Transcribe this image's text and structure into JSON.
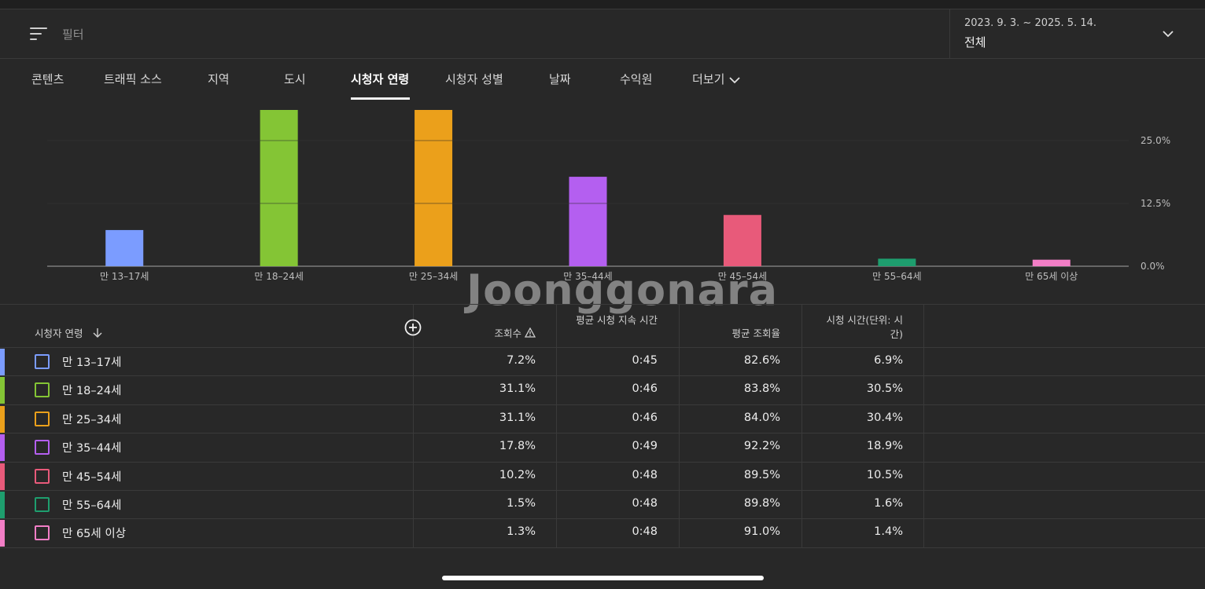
{
  "filter": {
    "label": "필터",
    "icon": "filter-icon"
  },
  "date": {
    "range": "2023. 9. 3. ~ 2025. 5. 14.",
    "value": "전체"
  },
  "tabs": [
    {
      "label": "콘텐츠"
    },
    {
      "label": "트래픽 소스"
    },
    {
      "label": "지역"
    },
    {
      "label": "도시"
    },
    {
      "label": "시청자 연령",
      "active": true
    },
    {
      "label": "시청자 성별"
    },
    {
      "label": "날짜"
    },
    {
      "label": "수익원"
    },
    {
      "label": "더보기"
    }
  ],
  "watermark": "Joonggonara",
  "chart_data": {
    "type": "bar",
    "categories": [
      "만 13–17세",
      "만 18–24세",
      "만 25–34세",
      "만 35–44세",
      "만 45–54세",
      "만 55–64세",
      "만 65세 이상"
    ],
    "values": [
      7.2,
      31.1,
      31.1,
      17.8,
      10.2,
      1.5,
      1.3
    ],
    "colors": [
      "#7b9cff",
      "#84c535",
      "#eba01b",
      "#b45ff0",
      "#e85a7a",
      "#1e9e6e",
      "#f27ec6"
    ],
    "yticks": [
      "0.0%",
      "12.5%",
      "25.0%"
    ],
    "ytick_values": [
      0,
      12.5,
      25
    ],
    "ylim": [
      0,
      25
    ],
    "grid": true
  },
  "table": {
    "headers": {
      "dimension": "시청자 연령",
      "views": "조회수",
      "avg_duration": "평균 시청 지속 시간",
      "avg_percent": "평균 조회율",
      "watch_time": "시청 시간(단위: 시간)"
    },
    "rows": [
      {
        "label": "만 13–17세",
        "views": "7.2%",
        "duration": "0:45",
        "percent": "82.6%",
        "watch": "6.9%",
        "color": "#7b9cff"
      },
      {
        "label": "만 18–24세",
        "views": "31.1%",
        "duration": "0:46",
        "percent": "83.8%",
        "watch": "30.5%",
        "color": "#84c535"
      },
      {
        "label": "만 25–34세",
        "views": "31.1%",
        "duration": "0:46",
        "percent": "84.0%",
        "watch": "30.4%",
        "color": "#eba01b"
      },
      {
        "label": "만 35–44세",
        "views": "17.8%",
        "duration": "0:49",
        "percent": "92.2%",
        "watch": "18.9%",
        "color": "#b45ff0"
      },
      {
        "label": "만 45–54세",
        "views": "10.2%",
        "duration": "0:48",
        "percent": "89.5%",
        "watch": "10.5%",
        "color": "#e85a7a"
      },
      {
        "label": "만 55–64세",
        "views": "1.5%",
        "duration": "0:48",
        "percent": "89.8%",
        "watch": "1.6%",
        "color": "#1e9e6e"
      },
      {
        "label": "만 65세 이상",
        "views": "1.3%",
        "duration": "0:48",
        "percent": "91.0%",
        "watch": "1.4%",
        "color": "#f27ec6"
      }
    ]
  }
}
